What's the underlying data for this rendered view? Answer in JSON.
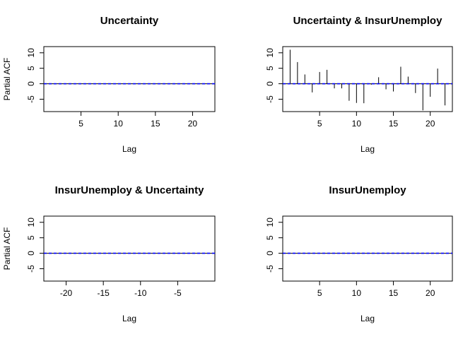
{
  "chart_data": [
    {
      "type": "bar",
      "title": "Uncertainty",
      "xlabel": "Lag",
      "ylabel": "Partial ACF",
      "xlim": [
        0,
        23
      ],
      "ylim": [
        -9,
        12
      ],
      "xticks": [
        5,
        10,
        15,
        20
      ],
      "yticks": [
        10,
        5,
        0,
        -5
      ],
      "lags": [
        1,
        2,
        3,
        4,
        5,
        6,
        7,
        8,
        9,
        10,
        11,
        12,
        13,
        14,
        15,
        16,
        17,
        18,
        19,
        20,
        21,
        22
      ],
      "values": [
        0,
        0,
        0,
        0,
        0,
        0,
        0,
        0,
        0,
        0,
        0,
        0,
        0,
        0,
        0,
        0,
        0,
        0,
        0,
        0,
        0,
        0
      ],
      "ci": 0.05,
      "ci_color": "#0000ff"
    },
    {
      "type": "bar",
      "title": "Uncertainty & InsurUnemploy",
      "xlabel": "Lag",
      "ylabel": "",
      "xlim": [
        0,
        23
      ],
      "ylim": [
        -9,
        12
      ],
      "xticks": [
        5,
        10,
        15,
        20
      ],
      "yticks": [
        10,
        5,
        0,
        -5
      ],
      "lags": [
        1,
        2,
        3,
        4,
        5,
        6,
        7,
        8,
        9,
        10,
        11,
        12,
        13,
        14,
        15,
        16,
        17,
        18,
        19,
        20,
        21,
        22
      ],
      "values": [
        11,
        7,
        3,
        -2.8,
        3.8,
        4.5,
        -1.5,
        -1.5,
        -5.5,
        -6.2,
        -6.3,
        -0.3,
        2.1,
        -1.8,
        -2.5,
        5.5,
        2.3,
        -3,
        -8.6,
        -4.2,
        4.9,
        -7
      ],
      "ci": 0.05,
      "ci_color": "#0000ff"
    },
    {
      "type": "bar",
      "title": "InsurUnemploy & Uncertainty",
      "xlabel": "Lag",
      "ylabel": "Partial ACF",
      "xlim": [
        -23,
        0
      ],
      "ylim": [
        -9,
        12
      ],
      "xticks": [
        -20,
        -15,
        -10,
        -5
      ],
      "yticks": [
        10,
        5,
        0,
        -5
      ],
      "lags": [
        -22,
        -21,
        -20,
        -19,
        -18,
        -17,
        -16,
        -15,
        -14,
        -13,
        -12,
        -11,
        -10,
        -9,
        -8,
        -7,
        -6,
        -5,
        -4,
        -3,
        -2,
        -1
      ],
      "values": [
        0,
        0,
        0,
        0,
        0,
        0,
        0,
        0,
        0,
        0,
        0,
        0,
        0,
        0,
        0,
        0,
        0,
        0,
        0,
        0,
        0,
        0
      ],
      "ci": 0.05,
      "ci_color": "#0000ff"
    },
    {
      "type": "bar",
      "title": "InsurUnemploy",
      "xlabel": "Lag",
      "ylabel": "",
      "xlim": [
        0,
        23
      ],
      "ylim": [
        -9,
        12
      ],
      "xticks": [
        5,
        10,
        15,
        20
      ],
      "yticks": [
        10,
        5,
        0,
        -5
      ],
      "lags": [
        1,
        2,
        3,
        4,
        5,
        6,
        7,
        8,
        9,
        10,
        11,
        12,
        13,
        14,
        15,
        16,
        17,
        18,
        19,
        20,
        21,
        22
      ],
      "values": [
        0,
        0,
        0,
        0,
        0,
        0,
        0,
        0,
        0,
        0,
        0,
        0,
        0,
        0,
        0,
        0,
        0,
        0,
        0,
        0,
        0,
        0
      ],
      "ci": 0.05,
      "ci_color": "#0000ff"
    }
  ]
}
